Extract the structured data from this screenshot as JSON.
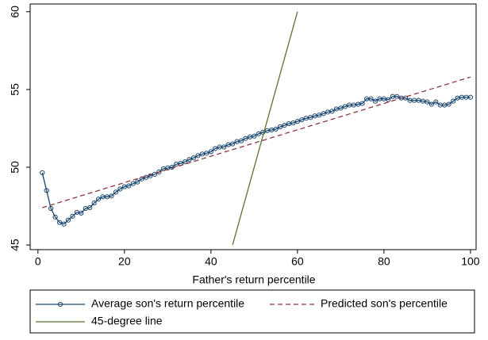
{
  "chart_data": {
    "type": "line",
    "x_label": "Father's return percentile",
    "xlim": [
      -1.8,
      101.3
    ],
    "xticks": [
      0,
      20,
      40,
      60,
      80,
      100
    ],
    "ylim": [
      44.7,
      60.5
    ],
    "yticks": [
      45,
      50,
      55,
      60
    ],
    "series": [
      {
        "name": "Average son's return percentile",
        "color": "#1a476f",
        "style": "solid",
        "markers": true,
        "x": [
          1,
          2,
          3,
          4,
          5,
          6,
          7,
          8,
          9,
          10,
          11,
          12,
          13,
          14,
          15,
          16,
          17,
          18,
          19,
          20,
          21,
          22,
          23,
          24,
          25,
          26,
          27,
          28,
          29,
          30,
          31,
          32,
          33,
          34,
          35,
          36,
          37,
          38,
          39,
          40,
          41,
          42,
          43,
          44,
          45,
          46,
          47,
          48,
          49,
          50,
          51,
          52,
          53,
          54,
          55,
          56,
          57,
          58,
          59,
          60,
          61,
          62,
          63,
          64,
          65,
          66,
          67,
          68,
          69,
          70,
          71,
          72,
          73,
          74,
          75,
          76,
          77,
          78,
          79,
          80,
          81,
          82,
          83,
          84,
          85,
          86,
          87,
          88,
          89,
          90,
          91,
          92,
          93,
          94,
          95,
          96,
          97,
          98,
          99,
          100
        ],
        "values": [
          49.65,
          48.5,
          47.35,
          46.8,
          46.45,
          46.35,
          46.6,
          46.85,
          47.1,
          47.05,
          47.35,
          47.4,
          47.7,
          47.95,
          48.1,
          48.1,
          48.15,
          48.4,
          48.6,
          48.75,
          48.8,
          48.95,
          49.05,
          49.25,
          49.35,
          49.45,
          49.55,
          49.7,
          49.9,
          49.95,
          50.0,
          50.2,
          50.25,
          50.35,
          50.5,
          50.6,
          50.75,
          50.85,
          50.9,
          51.0,
          51.2,
          51.3,
          51.3,
          51.45,
          51.5,
          51.65,
          51.7,
          51.85,
          51.95,
          52.0,
          52.15,
          52.25,
          52.35,
          52.4,
          52.45,
          52.6,
          52.7,
          52.8,
          52.85,
          52.95,
          53.05,
          53.15,
          53.2,
          53.3,
          53.35,
          53.45,
          53.55,
          53.6,
          53.75,
          53.8,
          53.9,
          54.0,
          54.0,
          54.05,
          54.1,
          54.4,
          54.4,
          54.25,
          54.4,
          54.4,
          54.35,
          54.55,
          54.55,
          54.45,
          54.45,
          54.3,
          54.3,
          54.3,
          54.25,
          54.2,
          54.05,
          54.2,
          54.0,
          54.0,
          54.05,
          54.25,
          54.45,
          54.5,
          54.5,
          54.5
        ]
      },
      {
        "name": "Predicted son's percentile",
        "color": "#90353b",
        "style": "dashed",
        "markers": false,
        "x": [
          1,
          100
        ],
        "values": [
          47.4,
          55.8
        ]
      },
      {
        "name": "45-degree line",
        "color": "#55752f",
        "style": "solid",
        "markers": false,
        "x": [
          45,
          60
        ],
        "values": [
          45,
          60
        ]
      }
    ]
  }
}
